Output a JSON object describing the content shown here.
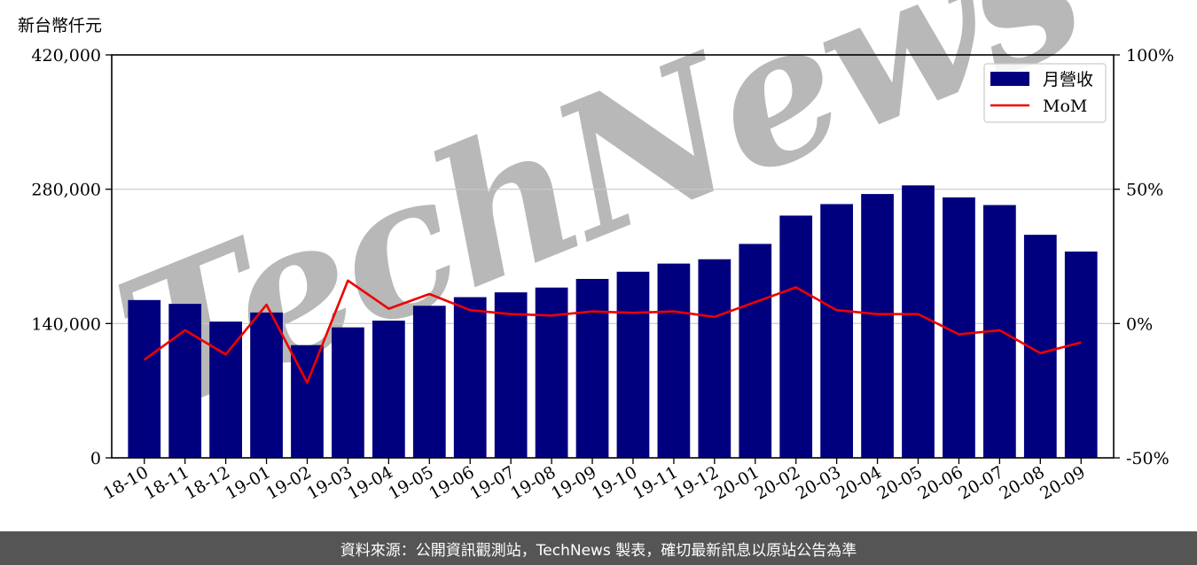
{
  "chart_data": {
    "type": "bar",
    "unit_label": "新台幣仟元",
    "categories": [
      "18-10",
      "18-11",
      "18-12",
      "19-01",
      "19-02",
      "19-03",
      "19-04",
      "19-05",
      "19-06",
      "19-07",
      "19-08",
      "19-09",
      "19-10",
      "19-11",
      "19-12",
      "20-01",
      "20-02",
      "20-03",
      "20-04",
      "20-05",
      "20-06",
      "20-07",
      "20-08",
      "20-09"
    ],
    "series": [
      {
        "name": "月營收",
        "axis": "left",
        "kind": "bar",
        "color": "#00007f",
        "values": [
          164500,
          160500,
          142000,
          151500,
          117500,
          136000,
          143000,
          158500,
          167500,
          172500,
          177500,
          186500,
          194000,
          202500,
          207000,
          223000,
          252500,
          264500,
          275000,
          284000,
          271500,
          263500,
          232500,
          215000
        ]
      },
      {
        "name": "MoM",
        "axis": "right",
        "kind": "line",
        "color": "#ee0000",
        "unit": "%",
        "values": [
          -13.5,
          -2.5,
          -11.5,
          7,
          -22,
          16,
          5.5,
          11,
          5,
          3.5,
          3,
          4.5,
          4,
          4.5,
          2.5,
          8,
          13.5,
          5,
          3.5,
          3.5,
          -4,
          -2.5,
          -11,
          -7
        ]
      }
    ],
    "y_left": {
      "range": [
        0,
        420000
      ],
      "ticks": [
        "0",
        "140,000",
        "280,000",
        "420,000"
      ]
    },
    "y_right": {
      "range": [
        -50,
        100
      ],
      "ticks": [
        "-50%",
        "0%",
        "50%",
        "100%"
      ]
    },
    "grid": true,
    "legend_position": "top-right",
    "watermark": "TechNews"
  },
  "footer": {
    "source_text": "資料來源：公開資訊觀測站，TechNews 製表，確切最新訊息以原站公告為準",
    "background_color": "#555555"
  }
}
